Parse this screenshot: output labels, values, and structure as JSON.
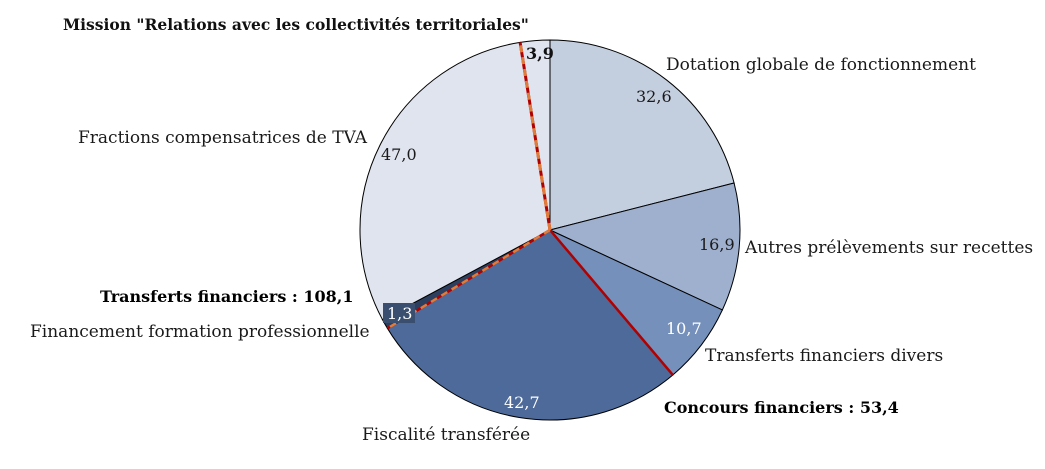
{
  "chart_data": {
    "type": "pie",
    "title": "Mission \"Relations avec les collectivités territoriales\"",
    "slices": [
      {
        "label": "Dotation globale de fonctionnement",
        "value": 32.6,
        "value_label": "32,6",
        "color": "#c3cedf"
      },
      {
        "label": "Autres prélèvements sur recettes",
        "value": 16.9,
        "value_label": "16,9",
        "color": "#9eb0cd"
      },
      {
        "label": "Transferts financiers divers",
        "value": 10.7,
        "value_label": "10,7",
        "color": "#7590bb"
      },
      {
        "label": "Fiscalité transférée",
        "value": 42.7,
        "value_label": "42,7",
        "color": "#4d6a9a"
      },
      {
        "label": "Financement formation professionnelle",
        "value": 1.3,
        "value_label": "1,3",
        "color": "#2c3f5e"
      },
      {
        "label": "Fractions compensatrices de TVA",
        "value": 47.0,
        "value_label": "47,0",
        "color": "#dfe4ee"
      },
      {
        "label": "",
        "value": 3.9,
        "value_label": "3,9",
        "color": "#dfe4ee"
      }
    ],
    "annotations": {
      "transferts": {
        "text": "Transferts financiers : 108,1",
        "color": "#e07b39"
      },
      "concours": {
        "text": "Concours financiers : 53,4",
        "color": "#b00000"
      }
    }
  }
}
